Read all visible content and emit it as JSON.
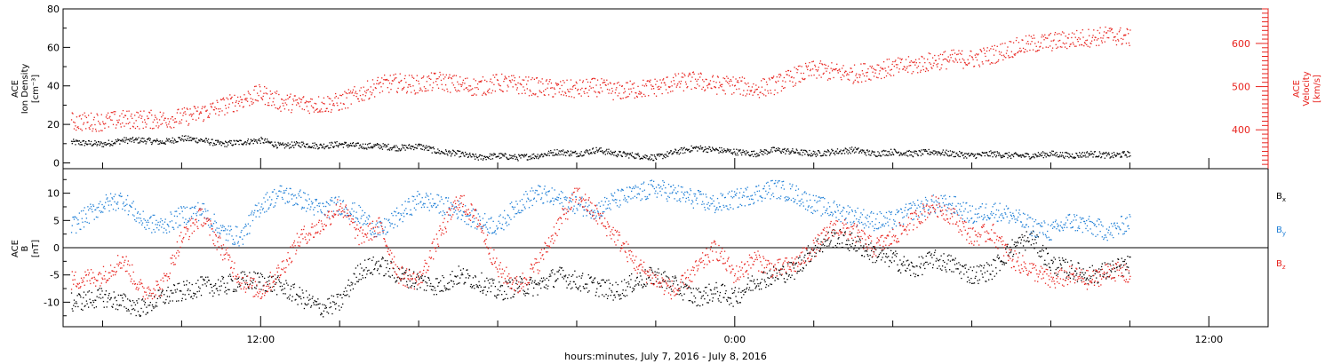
{
  "colors": {
    "black": "#000000",
    "red": "#e8231e",
    "blue": "#1f7fd6"
  },
  "chart_data": [
    {
      "type": "scatter",
      "panel": "top",
      "ylabel_left": [
        "ACE",
        "Ion Density",
        "[cm⁻³]"
      ],
      "ylabel_right": [
        "ACE",
        "Velocity",
        "[km/s]"
      ],
      "y_left_range": [
        -3,
        80
      ],
      "y_left_ticks": [
        0,
        20,
        40,
        60,
        80
      ],
      "y_right_range": [
        310,
        680
      ],
      "y_right_ticks": [
        400,
        500,
        600
      ],
      "x_hours_range": [
        7.0,
        37.5
      ],
      "series": [
        {
          "axis": "left",
          "color": "#000000",
          "x": [
            7.2,
            8.0,
            8.5,
            9.0,
            9.5,
            10.0,
            10.5,
            11.0,
            11.5,
            12.0,
            12.5,
            13.0,
            13.5,
            14.0,
            14.5,
            15.0,
            15.5,
            16.0,
            16.5,
            17.0,
            17.5,
            18.0,
            18.5,
            19.0,
            19.5,
            20.0,
            20.5,
            21.0,
            21.5,
            22.0,
            22.5,
            23.0,
            23.5,
            24.0,
            24.5,
            25.0,
            25.5,
            26.0,
            26.5,
            27.0,
            27.5,
            28.0,
            28.5,
            29.0,
            29.5,
            30.0,
            30.5,
            31.0,
            31.5,
            32.0,
            32.5,
            33.0,
            33.5,
            34.0
          ],
          "y": [
            11,
            10,
            12,
            12,
            11,
            13,
            12,
            10,
            11,
            12,
            9,
            10,
            9,
            10,
            9,
            9,
            8,
            9,
            6,
            5,
            3,
            4,
            3,
            4,
            6,
            5,
            7,
            5,
            4,
            3,
            6,
            8,
            7,
            6,
            5,
            7,
            6,
            5,
            6,
            7,
            5,
            6,
            5,
            6,
            5,
            4,
            5,
            4,
            4,
            5,
            4,
            5,
            4,
            5
          ]
        },
        {
          "axis": "right",
          "color": "#e8231e",
          "x": [
            7.2,
            8.0,
            8.5,
            9.0,
            9.5,
            10.0,
            10.5,
            11.0,
            11.5,
            12.0,
            12.5,
            13.0,
            13.5,
            14.0,
            14.5,
            15.0,
            15.5,
            16.0,
            16.5,
            17.0,
            17.5,
            18.0,
            18.5,
            19.0,
            19.5,
            20.0,
            20.5,
            21.0,
            21.5,
            22.0,
            22.5,
            23.0,
            23.5,
            24.0,
            24.5,
            25.0,
            25.5,
            26.0,
            26.5,
            27.0,
            27.5,
            28.0,
            28.5,
            29.0,
            29.5,
            30.0,
            30.5,
            31.0,
            31.5,
            32.0,
            32.5,
            33.0,
            33.5,
            34.0
          ],
          "y": [
            420,
            420,
            425,
            425,
            425,
            430,
            440,
            455,
            470,
            485,
            465,
            462,
            460,
            465,
            485,
            505,
            510,
            505,
            515,
            505,
            500,
            510,
            505,
            500,
            495,
            495,
            500,
            490,
            495,
            500,
            510,
            515,
            505,
            505,
            495,
            505,
            525,
            540,
            535,
            530,
            540,
            545,
            550,
            560,
            565,
            565,
            575,
            590,
            600,
            605,
            610,
            615,
            620,
            615
          ]
        }
      ]
    },
    {
      "type": "scatter",
      "panel": "bottom",
      "ylabel_left": [
        "ACE",
        "B",
        "[nT]"
      ],
      "y_range": [
        -14.5,
        14.5
      ],
      "y_ticks": [
        -10,
        -5,
        0,
        5,
        10
      ],
      "zero_line": true,
      "x_hours_range": [
        7.0,
        37.5
      ],
      "legend": [
        "Bx",
        "By",
        "Bz"
      ],
      "series": [
        {
          "name": "Bx",
          "color": "#000000",
          "x": [
            7.2,
            8.0,
            8.5,
            9.0,
            9.5,
            10.0,
            10.5,
            11.0,
            11.5,
            12.0,
            12.5,
            13.0,
            13.5,
            14.0,
            14.5,
            15.0,
            15.5,
            16.0,
            16.5,
            17.0,
            17.5,
            18.0,
            18.5,
            19.0,
            19.5,
            20.0,
            20.5,
            21.0,
            21.5,
            22.0,
            22.5,
            23.0,
            23.5,
            24.0,
            24.5,
            25.0,
            25.5,
            26.0,
            26.5,
            27.0,
            27.5,
            28.0,
            28.5,
            29.0,
            29.5,
            30.0,
            30.5,
            31.0,
            31.5,
            32.0,
            32.5,
            33.0,
            33.5,
            34.0
          ],
          "y": [
            -10,
            -9,
            -10,
            -11,
            -9,
            -8,
            -7,
            -7,
            -6,
            -6,
            -7,
            -9,
            -11,
            -10,
            -4,
            -3,
            -5,
            -6,
            -7,
            -5,
            -6,
            -8,
            -7,
            -7,
            -5,
            -6,
            -7,
            -8,
            -6,
            -5,
            -7,
            -9,
            -8,
            -9,
            -6,
            -5,
            -4,
            0,
            2,
            1,
            -1,
            -2,
            -4,
            -2,
            -3,
            -5,
            -4,
            0,
            2,
            -3,
            -4,
            -5,
            -4,
            -3
          ]
        },
        {
          "name": "By",
          "color": "#1f7fd6",
          "x": [
            7.2,
            8.0,
            8.5,
            9.0,
            9.5,
            10.0,
            10.5,
            11.0,
            11.5,
            12.0,
            12.5,
            13.0,
            13.5,
            14.0,
            14.5,
            15.0,
            15.5,
            16.0,
            16.5,
            17.0,
            17.5,
            18.0,
            18.5,
            19.0,
            19.5,
            20.0,
            20.5,
            21.0,
            21.5,
            22.0,
            22.5,
            23.0,
            23.5,
            24.0,
            24.5,
            25.0,
            25.5,
            26.0,
            26.5,
            27.0,
            27.5,
            28.0,
            28.5,
            29.0,
            29.5,
            30.0,
            30.5,
            31.0,
            31.5,
            32.0,
            32.5,
            33.0,
            33.5,
            34.0
          ],
          "y": [
            4,
            8,
            9,
            5,
            4,
            6,
            7,
            3,
            2,
            8,
            10,
            9,
            7,
            8,
            6,
            3,
            6,
            9,
            8,
            7,
            5,
            4,
            8,
            10,
            9,
            8,
            7,
            9,
            10,
            11,
            10,
            9,
            8,
            9,
            10,
            11,
            10,
            8,
            7,
            6,
            5,
            5,
            7,
            8,
            8,
            6,
            7,
            6,
            4,
            3,
            5,
            4,
            3,
            5
          ]
        },
        {
          "name": "Bz",
          "color": "#e8231e",
          "x": [
            7.2,
            8.0,
            8.5,
            9.0,
            9.5,
            10.0,
            10.5,
            11.0,
            11.5,
            12.0,
            12.5,
            13.0,
            13.5,
            14.0,
            14.5,
            15.0,
            15.5,
            16.0,
            16.5,
            17.0,
            17.5,
            18.0,
            18.5,
            19.0,
            19.5,
            20.0,
            20.5,
            21.0,
            21.5,
            22.0,
            22.5,
            23.0,
            23.5,
            24.0,
            24.5,
            25.0,
            25.5,
            26.0,
            26.5,
            27.0,
            27.5,
            28.0,
            28.5,
            29.0,
            29.5,
            30.0,
            30.5,
            31.0,
            31.5,
            32.0,
            32.5,
            33.0,
            33.5,
            34.0
          ],
          "y": [
            -6,
            -5,
            -2,
            -8,
            -7,
            2,
            6,
            0,
            -6,
            -8,
            -4,
            2,
            4,
            8,
            2,
            4,
            -5,
            -6,
            2,
            9,
            5,
            -4,
            -7,
            -3,
            4,
            10,
            6,
            2,
            -3,
            -6,
            -8,
            -4,
            0,
            -5,
            -2,
            -4,
            -3,
            0,
            4,
            3,
            0,
            2,
            5,
            8,
            6,
            2,
            3,
            -2,
            -4,
            -6,
            -5,
            -6,
            -4,
            -5
          ]
        }
      ]
    }
  ],
  "x_axis": {
    "range": [
      7.0,
      37.5
    ],
    "major_ticks": [
      {
        "hour": 12,
        "label": "12:00"
      },
      {
        "hour": 24,
        "label": "0:00"
      },
      {
        "hour": 36,
        "label": "12:00"
      }
    ],
    "minor_step_hours": 2,
    "title": "hours:minutes, July  7, 2016 - July  8, 2016"
  }
}
